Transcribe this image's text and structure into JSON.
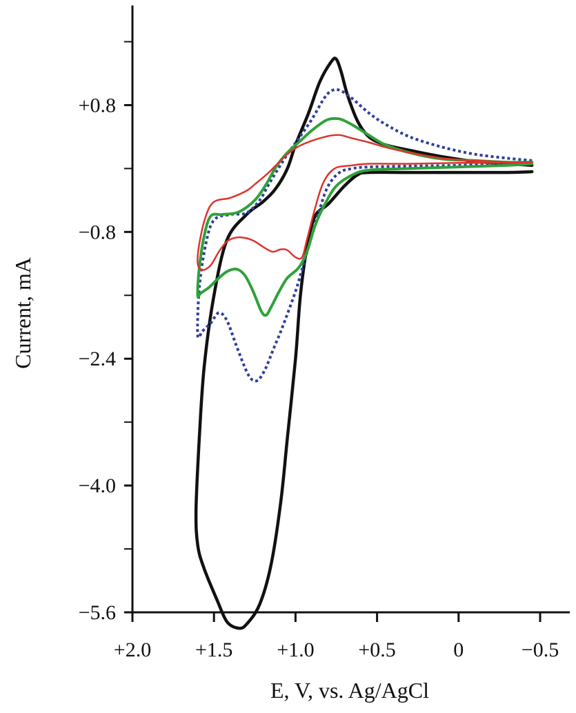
{
  "chart_data": {
    "type": "line",
    "title": "",
    "xlabel": "E, V, vs. Ag/AgCl",
    "ylabel": "Current, mA",
    "xlim": [
      2.0,
      -0.5
    ],
    "ylim": [
      -5.6,
      1.5
    ],
    "x_ticks": [
      2.0,
      1.5,
      1.0,
      0.5,
      0.0,
      -0.5
    ],
    "x_tick_labels": [
      "+2.0",
      "+1.5",
      "+1.0",
      "+0.5",
      "0",
      "−0.5"
    ],
    "y_ticks": [
      0.8,
      -0.8,
      -2.4,
      -4.0,
      -5.6
    ],
    "y_tick_labels": [
      "+0.8",
      "−0.8",
      "−2.4",
      "−4.0",
      "−5.6"
    ],
    "y_minor_ticks": [
      1.6,
      0.0,
      -1.6,
      -3.2,
      -4.8
    ],
    "grid": false,
    "legend": "none",
    "series": [
      {
        "color": "#111111",
        "style": "solid",
        "width": 4.5,
        "points": [
          [
            -0.45,
            0.04
          ],
          [
            -0.3,
            0.06
          ],
          [
            -0.1,
            0.09
          ],
          [
            0.1,
            0.15
          ],
          [
            0.3,
            0.23
          ],
          [
            0.45,
            0.3
          ],
          [
            0.55,
            0.4
          ],
          [
            0.62,
            0.6
          ],
          [
            0.68,
            0.92
          ],
          [
            0.72,
            1.22
          ],
          [
            0.75,
            1.38
          ],
          [
            0.78,
            1.35
          ],
          [
            0.85,
            1.1
          ],
          [
            0.92,
            0.7
          ],
          [
            1.0,
            0.3
          ],
          [
            1.05,
            0.0
          ],
          [
            1.12,
            -0.25
          ],
          [
            1.2,
            -0.42
          ],
          [
            1.3,
            -0.58
          ],
          [
            1.42,
            -0.9
          ],
          [
            1.5,
            -1.6
          ],
          [
            1.56,
            -2.5
          ],
          [
            1.59,
            -3.4
          ],
          [
            1.61,
            -4.3
          ],
          [
            1.6,
            -4.75
          ],
          [
            1.56,
            -5.05
          ],
          [
            1.48,
            -5.45
          ],
          [
            1.42,
            -5.72
          ],
          [
            1.35,
            -5.8
          ],
          [
            1.3,
            -5.75
          ],
          [
            1.22,
            -5.5
          ],
          [
            1.15,
            -5.0
          ],
          [
            1.09,
            -4.2
          ],
          [
            1.05,
            -3.4
          ],
          [
            1.0,
            -2.4
          ],
          [
            0.97,
            -1.6
          ],
          [
            0.93,
            -1.0
          ],
          [
            0.88,
            -0.6
          ],
          [
            0.8,
            -0.45
          ],
          [
            0.7,
            -0.22
          ],
          [
            0.62,
            -0.08
          ],
          [
            0.55,
            -0.05
          ],
          [
            0.3,
            -0.05
          ],
          [
            0.0,
            -0.05
          ],
          [
            -0.3,
            -0.05
          ],
          [
            -0.45,
            -0.04
          ]
        ]
      },
      {
        "color": "#2e3f9a",
        "style": "dotted",
        "width": 4,
        "points": [
          [
            -0.45,
            0.1
          ],
          [
            -0.3,
            0.13
          ],
          [
            -0.1,
            0.18
          ],
          [
            0.1,
            0.27
          ],
          [
            0.3,
            0.4
          ],
          [
            0.45,
            0.56
          ],
          [
            0.55,
            0.7
          ],
          [
            0.65,
            0.88
          ],
          [
            0.72,
            0.98
          ],
          [
            0.77,
            0.99
          ],
          [
            0.82,
            0.9
          ],
          [
            0.9,
            0.62
          ],
          [
            0.98,
            0.38
          ],
          [
            1.05,
            0.18
          ],
          [
            1.12,
            -0.05
          ],
          [
            1.17,
            -0.22
          ],
          [
            1.22,
            -0.4
          ],
          [
            1.3,
            -0.56
          ],
          [
            1.4,
            -0.58
          ],
          [
            1.5,
            -0.65
          ],
          [
            1.55,
            -0.95
          ],
          [
            1.59,
            -1.5
          ],
          [
            1.6,
            -2.1
          ],
          [
            1.57,
            -2.05
          ],
          [
            1.52,
            -1.95
          ],
          [
            1.47,
            -1.82
          ],
          [
            1.42,
            -1.92
          ],
          [
            1.36,
            -2.25
          ],
          [
            1.29,
            -2.6
          ],
          [
            1.24,
            -2.68
          ],
          [
            1.19,
            -2.55
          ],
          [
            1.13,
            -2.25
          ],
          [
            1.08,
            -2.0
          ],
          [
            1.0,
            -1.55
          ],
          [
            0.95,
            -1.2
          ],
          [
            0.9,
            -0.85
          ],
          [
            0.85,
            -0.5
          ],
          [
            0.8,
            -0.22
          ],
          [
            0.73,
            -0.05
          ],
          [
            0.65,
            0.0
          ],
          [
            0.55,
            0.02
          ],
          [
            0.3,
            0.03
          ],
          [
            0.0,
            0.04
          ],
          [
            -0.3,
            0.06
          ],
          [
            -0.45,
            0.08
          ]
        ]
      },
      {
        "color": "#2fa13a",
        "style": "solid",
        "width": 4,
        "points": [
          [
            -0.45,
            0.08
          ],
          [
            -0.3,
            0.08
          ],
          [
            -0.1,
            0.1
          ],
          [
            0.1,
            0.12
          ],
          [
            0.3,
            0.2
          ],
          [
            0.45,
            0.3
          ],
          [
            0.55,
            0.42
          ],
          [
            0.65,
            0.55
          ],
          [
            0.72,
            0.62
          ],
          [
            0.77,
            0.63
          ],
          [
            0.82,
            0.6
          ],
          [
            0.9,
            0.48
          ],
          [
            0.97,
            0.35
          ],
          [
            1.05,
            0.2
          ],
          [
            1.12,
            0.02
          ],
          [
            1.18,
            -0.2
          ],
          [
            1.25,
            -0.4
          ],
          [
            1.35,
            -0.55
          ],
          [
            1.45,
            -0.58
          ],
          [
            1.52,
            -0.6
          ],
          [
            1.56,
            -0.85
          ],
          [
            1.59,
            -1.25
          ],
          [
            1.6,
            -1.6
          ],
          [
            1.58,
            -1.57
          ],
          [
            1.53,
            -1.5
          ],
          [
            1.48,
            -1.4
          ],
          [
            1.42,
            -1.3
          ],
          [
            1.36,
            -1.27
          ],
          [
            1.31,
            -1.35
          ],
          [
            1.26,
            -1.55
          ],
          [
            1.21,
            -1.8
          ],
          [
            1.18,
            -1.85
          ],
          [
            1.15,
            -1.75
          ],
          [
            1.1,
            -1.55
          ],
          [
            1.05,
            -1.38
          ],
          [
            0.98,
            -1.25
          ],
          [
            0.93,
            -1.05
          ],
          [
            0.88,
            -0.72
          ],
          [
            0.82,
            -0.45
          ],
          [
            0.75,
            -0.22
          ],
          [
            0.65,
            -0.08
          ],
          [
            0.55,
            -0.02
          ],
          [
            0.3,
            0.0
          ],
          [
            0.0,
            0.02
          ],
          [
            -0.3,
            0.04
          ],
          [
            -0.45,
            0.06
          ]
        ]
      },
      {
        "color": "#e0322c",
        "style": "solid",
        "width": 2.5,
        "points": [
          [
            -0.45,
            0.08
          ],
          [
            -0.3,
            0.08
          ],
          [
            -0.1,
            0.1
          ],
          [
            0.1,
            0.13
          ],
          [
            0.3,
            0.2
          ],
          [
            0.45,
            0.27
          ],
          [
            0.55,
            0.33
          ],
          [
            0.65,
            0.38
          ],
          [
            0.72,
            0.42
          ],
          [
            0.77,
            0.42
          ],
          [
            0.82,
            0.4
          ],
          [
            0.9,
            0.35
          ],
          [
            0.98,
            0.28
          ],
          [
            1.05,
            0.18
          ],
          [
            1.12,
            0.04
          ],
          [
            1.18,
            -0.08
          ],
          [
            1.25,
            -0.2
          ],
          [
            1.3,
            -0.28
          ],
          [
            1.4,
            -0.37
          ],
          [
            1.5,
            -0.42
          ],
          [
            1.55,
            -0.6
          ],
          [
            1.59,
            -0.95
          ],
          [
            1.6,
            -1.2
          ],
          [
            1.57,
            -1.28
          ],
          [
            1.52,
            -1.22
          ],
          [
            1.47,
            -1.05
          ],
          [
            1.42,
            -0.92
          ],
          [
            1.36,
            -0.87
          ],
          [
            1.3,
            -0.88
          ],
          [
            1.25,
            -0.92
          ],
          [
            1.19,
            -1.0
          ],
          [
            1.14,
            -1.05
          ],
          [
            1.09,
            -1.02
          ],
          [
            1.05,
            -1.03
          ],
          [
            1.0,
            -1.12
          ],
          [
            0.96,
            -1.12
          ],
          [
            0.93,
            -0.9
          ],
          [
            0.88,
            -0.5
          ],
          [
            0.83,
            -0.18
          ],
          [
            0.76,
            0.0
          ],
          [
            0.65,
            0.04
          ],
          [
            0.55,
            0.06
          ],
          [
            0.3,
            0.06
          ],
          [
            0.0,
            0.07
          ],
          [
            -0.3,
            0.07
          ],
          [
            -0.45,
            0.08
          ]
        ]
      }
    ]
  }
}
